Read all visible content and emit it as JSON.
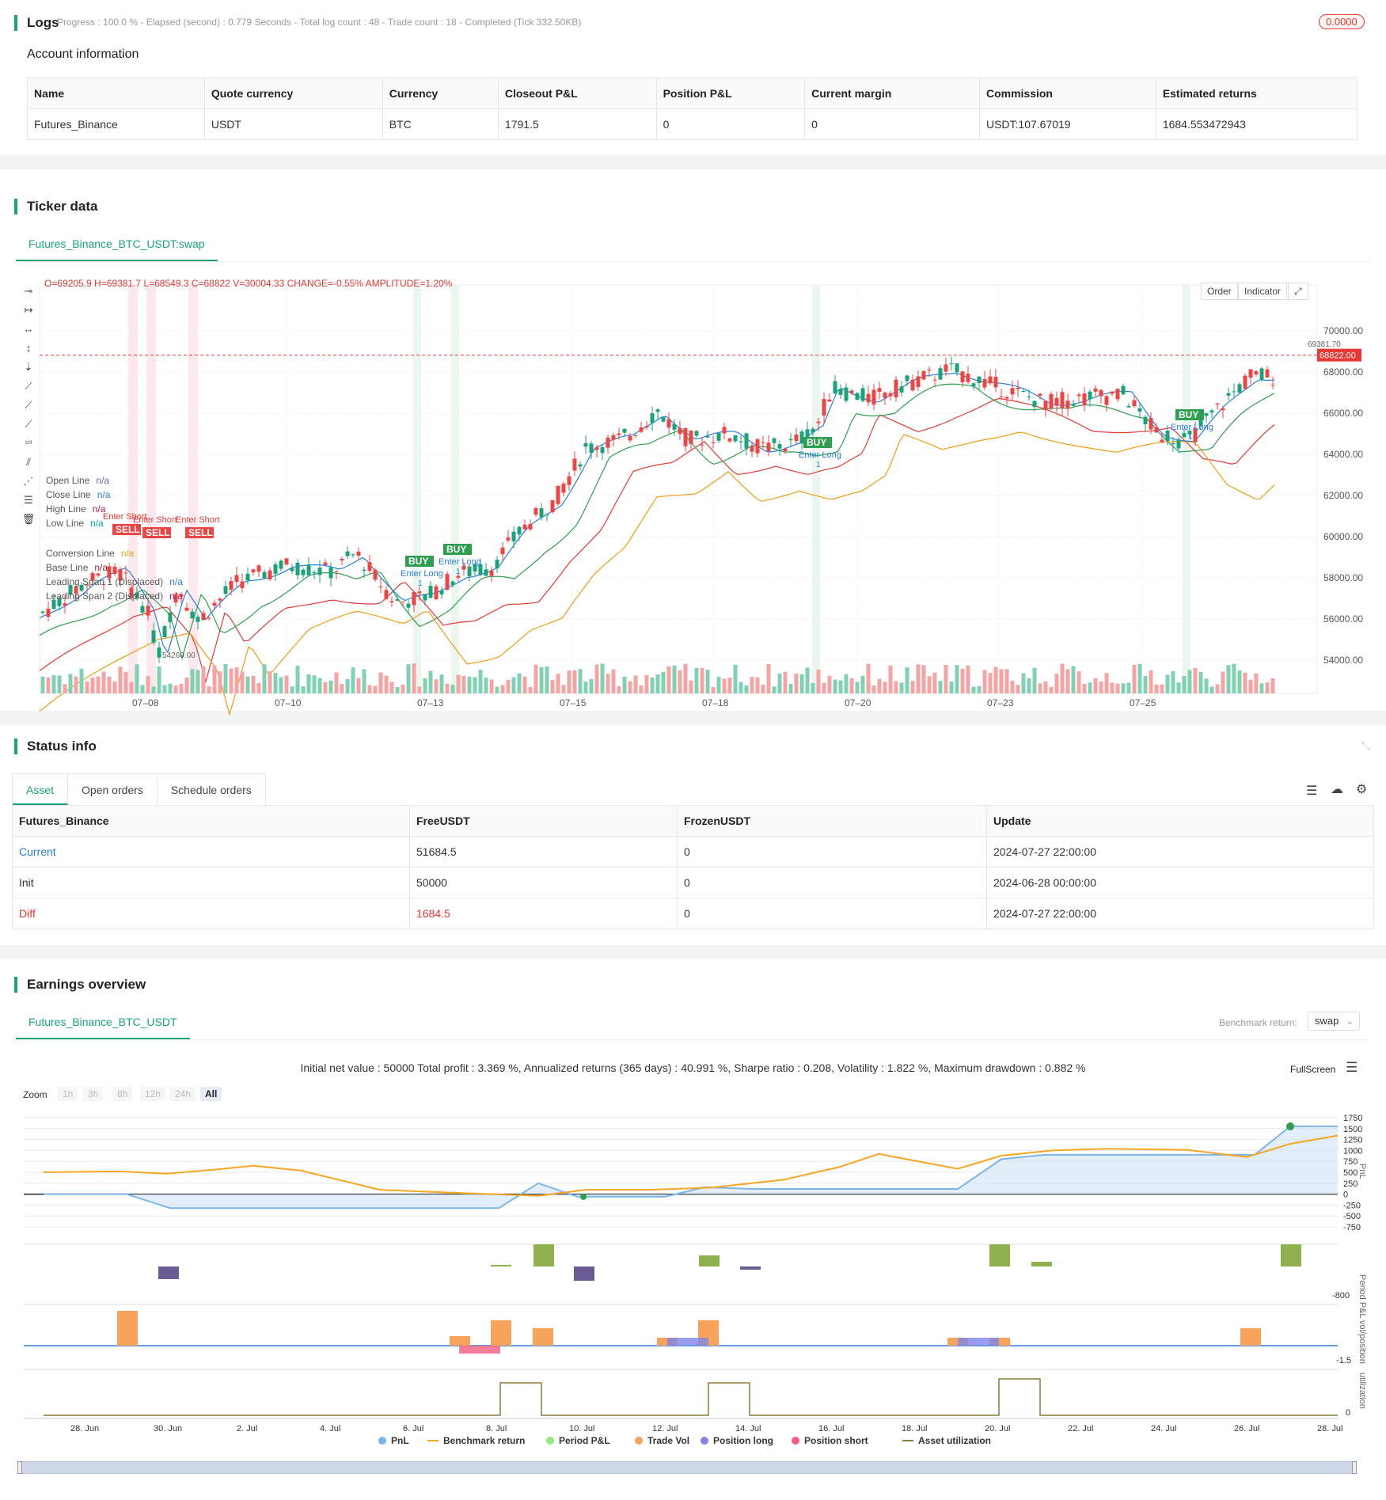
{
  "logs": {
    "title": "Logs",
    "progress_text": "Progress : 100.0 % - Elapsed (second) : 0.779  Seconds - Total log count : 48 - Trade count : 18 - Completed (Tick 332.50KB)",
    "badge": "0.0000"
  },
  "account": {
    "title": "Account information",
    "headers": [
      "Name",
      "Quote currency",
      "Currency",
      "Closeout P&L",
      "Position P&L",
      "Current margin",
      "Commission",
      "Estimated returns"
    ],
    "row": [
      "Futures_Binance",
      "USDT",
      "BTC",
      "1791.5",
      "0",
      "0",
      "USDT:107.67019",
      "1684.553472943"
    ]
  },
  "ticker": {
    "title": "Ticker data",
    "tab": "Futures_Binance_BTC_USDT:swap",
    "ohlc": "O=69205.9 H=69381.7 L=68549.3 C=68822 V=30004.33 CHANGE=-0.55% AMPLITUDE=1.20%",
    "order_btn": "Order",
    "indicator_btn": "Indicator",
    "legend": [
      {
        "name": "Open Line",
        "val": "n/a",
        "color": "#7b61b8"
      },
      {
        "name": "Close Line",
        "val": "n/a",
        "color": "#2a7de1"
      },
      {
        "name": "High Line",
        "val": "n/a",
        "color": "#c2185b"
      },
      {
        "name": "Low Line",
        "val": "n/a",
        "color": "#00a3a3"
      },
      {
        "name": "Conversion Line",
        "val": "n/a",
        "color": "#f39c12"
      },
      {
        "name": "Base Line",
        "val": "n/a",
        "color": "#9b2335"
      },
      {
        "name": "Leading Span 1 (Displaced)",
        "val": "n/a",
        "color": "#2a7de1"
      },
      {
        "name": "Leading Span 2 (Displaced)",
        "val": "n/a",
        "color": "#c2185b"
      }
    ],
    "y_ticks": [
      "70000.00",
      "68000.00",
      "66000.00",
      "64000.00",
      "62000.00",
      "60000.00",
      "58000.00",
      "56000.00",
      "54000.00"
    ],
    "x_ticks": [
      "07–08",
      "07–10",
      "07–13",
      "07–15",
      "07–18",
      "07–20",
      "07–23",
      "07–25"
    ],
    "last_price": "68822.00",
    "high_label": "69381.70",
    "low_label": "54260.00",
    "signals": {
      "sell": "SELL",
      "buy": "BUY",
      "enter_short": "Enter Short",
      "enter_long": "Enter Long",
      "qty": "1"
    }
  },
  "status": {
    "title": "Status info",
    "tabs": [
      "Asset",
      "Open orders",
      "Schedule orders"
    ],
    "headers": [
      "Futures_Binance",
      "FreeUSDT",
      "FrozenUSDT",
      "Update"
    ],
    "rows": [
      [
        "Current",
        "51684.5",
        "0",
        "2024-07-27 22:00:00"
      ],
      [
        "Init",
        "50000",
        "0",
        "2024-06-28 00:00:00"
      ],
      [
        "Diff",
        "1684.5",
        "0",
        "2024-07-27 22:00:00"
      ]
    ]
  },
  "earnings": {
    "title": "Earnings overview",
    "tab": "Futures_Binance_BTC_USDT",
    "benchmark_label": "Benchmark return:",
    "benchmark_value": "swap",
    "summary": "Initial net value : 50000 Total profit : 3.369 %, Annualized returns (365 days) : 40.991 %, Sharpe ratio : 0.208, Volatility : 1.822 %, Maximum drawdown : 0.882 %",
    "fullscreen": "FullScreen",
    "zoom_label": "Zoom",
    "zoom_options": [
      "1h",
      "3h",
      "8h",
      "12h",
      "24h",
      "All"
    ],
    "pnl_ticks": [
      "1750",
      "1500",
      "1250",
      "1000",
      "750",
      "500",
      "250",
      "0",
      "-250",
      "-500",
      "-750"
    ],
    "pnl_axis": "PnL",
    "period_axis": "Period P&L",
    "period_tick": "-800",
    "vol_axis": "vol/position",
    "vol_tick": "-1.5",
    "util_axis": "utilization",
    "util_tick": "0",
    "x_ticks": [
      "28. Jun",
      "30. Jun",
      "2. Jul",
      "4. Jul",
      "6. Jul",
      "8. Jul",
      "10. Jul",
      "12. Jul",
      "14. Jul",
      "16. Jul",
      "18. Jul",
      "20. Jul",
      "22. Jul",
      "24. Jul",
      "26. Jul",
      "28. Jul"
    ],
    "legend": [
      {
        "name": "PnL",
        "color": "#7cb5ec"
      },
      {
        "name": "Benchmark return",
        "color": "#f5a623"
      },
      {
        "name": "Period P&L",
        "color": "#90ed7d"
      },
      {
        "name": "Trade Vol",
        "color": "#f7a35c"
      },
      {
        "name": "Position long",
        "color": "#8085e9"
      },
      {
        "name": "Position short",
        "color": "#f15c80"
      },
      {
        "name": "Asset utilization",
        "color": "#8d7a3b"
      }
    ]
  }
}
